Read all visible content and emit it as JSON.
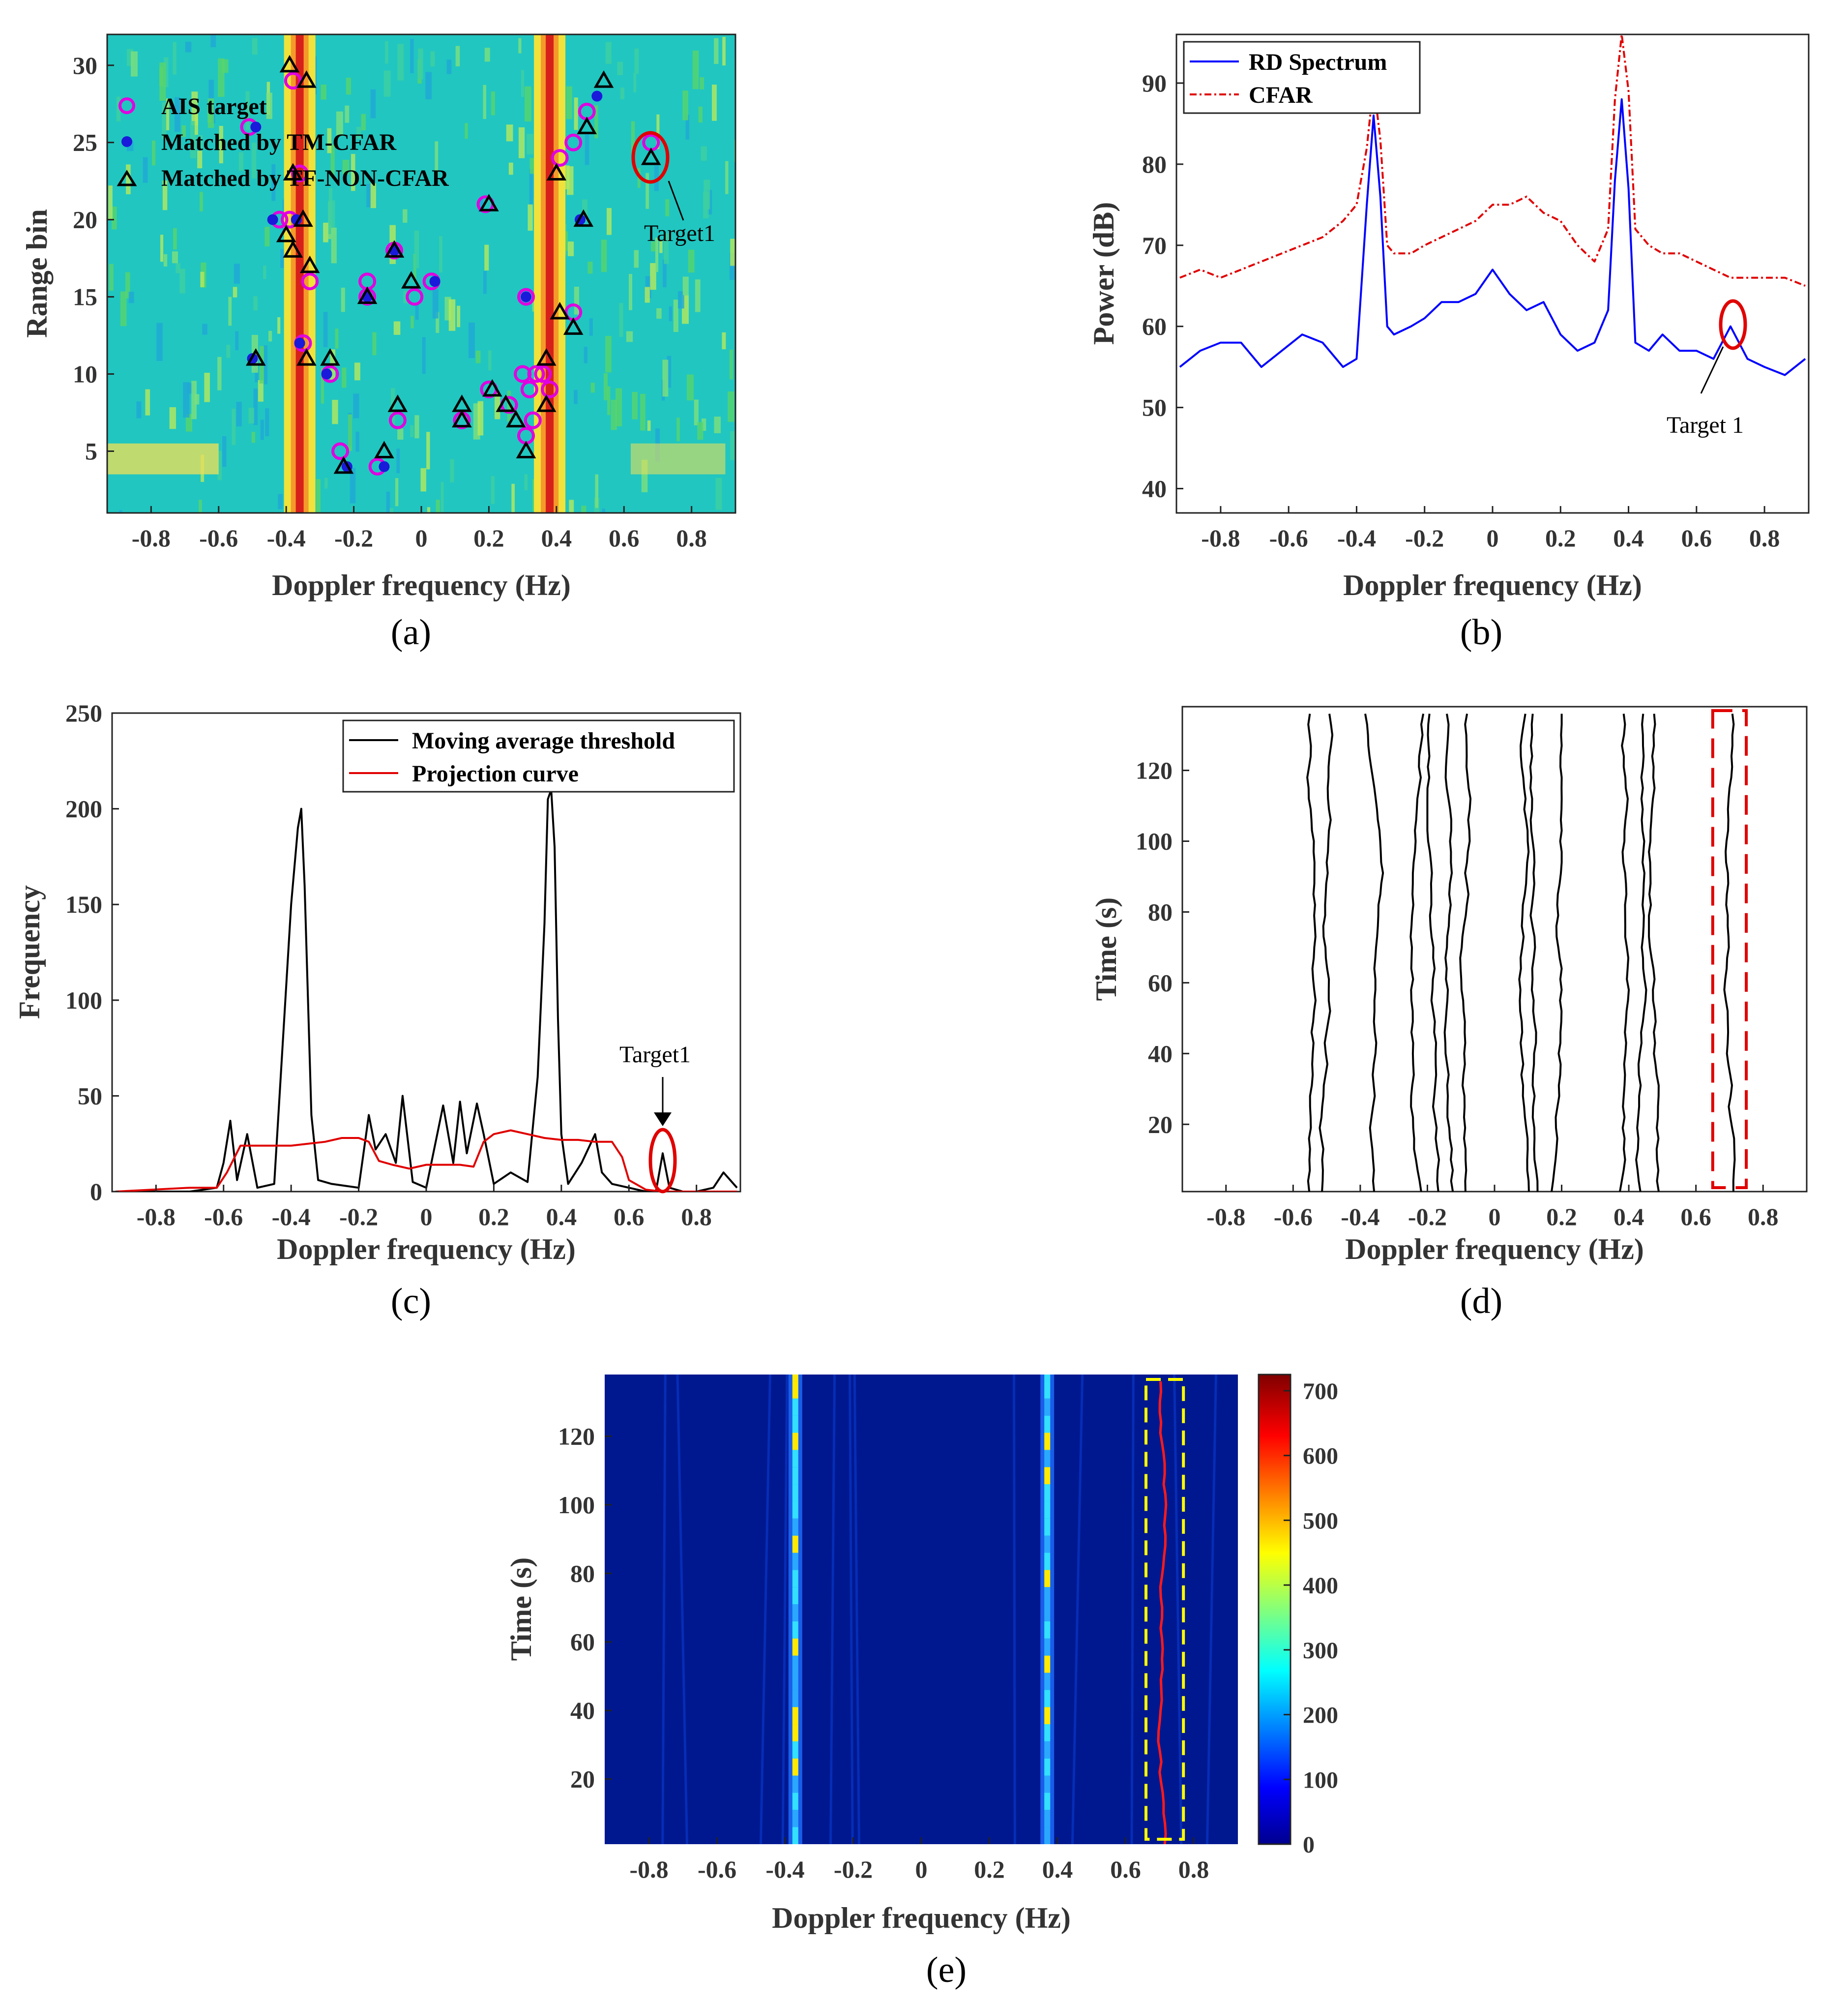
{
  "chart_data": [
    {
      "id": "a",
      "type": "heatmap",
      "panel_label": "(a)",
      "xlabel": "Doppler frequency (Hz)",
      "ylabel": "Range bin",
      "xlim": [
        -0.93,
        0.93
      ],
      "ylim": [
        1,
        32
      ],
      "xticks": [
        -0.8,
        -0.6,
        -0.4,
        -0.2,
        0,
        0.2,
        0.4,
        0.6,
        0.8
      ],
      "yticks": [
        5,
        10,
        15,
        20,
        25,
        30
      ],
      "background": "#21c6c0",
      "sea_clutter_ridges_hz": [
        -0.36,
        0.38
      ],
      "legend": [
        "AIS target",
        "Matched by TM-CFAR",
        "Matched by TF-NON-CFAR"
      ],
      "annotation": {
        "text": "Target1",
        "x": 0.68,
        "y": 24.5
      },
      "series": [
        {
          "name": "AIS target",
          "marker": "circle-magenta",
          "points": [
            [
              -0.51,
              26
            ],
            [
              -0.38,
              29
            ],
            [
              -0.36,
              23
            ],
            [
              -0.42,
              20
            ],
            [
              -0.39,
              20
            ],
            [
              -0.33,
              16
            ],
            [
              -0.16,
              16
            ],
            [
              -0.16,
              15
            ],
            [
              -0.02,
              15
            ],
            [
              0.03,
              16
            ],
            [
              -0.08,
              18
            ],
            [
              0.19,
              21
            ],
            [
              0.31,
              15
            ],
            [
              0.45,
              14
            ],
            [
              -0.35,
              12
            ],
            [
              -0.27,
              10
            ],
            [
              -0.24,
              5
            ],
            [
              -0.13,
              4
            ],
            [
              -0.07,
              7
            ],
            [
              0.12,
              7
            ],
            [
              0.2,
              9
            ],
            [
              0.26,
              8
            ],
            [
              0.3,
              10
            ],
            [
              0.32,
              9
            ],
            [
              0.34,
              10
            ],
            [
              0.36,
              10
            ],
            [
              0.31,
              6
            ],
            [
              0.33,
              7
            ],
            [
              0.38,
              9
            ],
            [
              0.41,
              24
            ],
            [
              0.45,
              25
            ],
            [
              0.49,
              27
            ],
            [
              0.68,
              25
            ]
          ]
        },
        {
          "name": "Matched by TM-CFAR",
          "marker": "dot-blue",
          "points": [
            [
              -0.49,
              26
            ],
            [
              -0.5,
              11
            ],
            [
              -0.44,
              20
            ],
            [
              -0.37,
              20
            ],
            [
              -0.36,
              12
            ],
            [
              -0.28,
              10
            ],
            [
              -0.22,
              4
            ],
            [
              -0.16,
              15
            ],
            [
              -0.11,
              4
            ],
            [
              0.04,
              16
            ],
            [
              -0.08,
              18
            ],
            [
              0.31,
              15
            ],
            [
              0.47,
              20
            ],
            [
              0.52,
              28
            ]
          ]
        },
        {
          "name": "Matched by TF-NON-CFAR",
          "marker": "triangle-black",
          "points": [
            [
              -0.39,
              30
            ],
            [
              -0.34,
              29
            ],
            [
              -0.38,
              23
            ],
            [
              -0.35,
              20
            ],
            [
              -0.4,
              19
            ],
            [
              -0.38,
              18
            ],
            [
              -0.33,
              17
            ],
            [
              -0.16,
              15
            ],
            [
              -0.03,
              16
            ],
            [
              -0.08,
              18
            ],
            [
              0.2,
              21
            ],
            [
              0.4,
              23
            ],
            [
              0.48,
              20
            ],
            [
              0.49,
              26
            ],
            [
              0.54,
              29
            ],
            [
              0.41,
              14
            ],
            [
              0.45,
              13
            ],
            [
              -0.49,
              11
            ],
            [
              -0.34,
              11
            ],
            [
              -0.27,
              11
            ],
            [
              -0.23,
              4
            ],
            [
              -0.11,
              5
            ],
            [
              -0.07,
              8
            ],
            [
              0.12,
              8
            ],
            [
              0.12,
              7
            ],
            [
              0.21,
              9
            ],
            [
              0.25,
              8
            ],
            [
              0.28,
              7
            ],
            [
              0.31,
              5
            ],
            [
              0.37,
              8
            ],
            [
              0.37,
              11
            ],
            [
              0.68,
              24
            ]
          ]
        }
      ]
    },
    {
      "id": "b",
      "type": "line",
      "panel_label": "(b)",
      "xlabel": "Doppler frequency (Hz)",
      "ylabel": "Power (dB)",
      "xlim": [
        -0.93,
        0.93
      ],
      "ylim": [
        37,
        96
      ],
      "xticks": [
        -0.8,
        -0.6,
        -0.4,
        -0.2,
        0,
        0.2,
        0.4,
        0.6,
        0.8
      ],
      "yticks": [
        40,
        50,
        60,
        70,
        80,
        90
      ],
      "legend": [
        "RD Spectrum",
        "CFAR"
      ],
      "annotation": {
        "text": "Target 1",
        "x": 0.7,
        "y": 61
      },
      "series": [
        {
          "name": "RD Spectrum",
          "color": "#0000ff",
          "style": "solid",
          "x": [
            -0.92,
            -0.86,
            -0.8,
            -0.74,
            -0.68,
            -0.62,
            -0.56,
            -0.5,
            -0.44,
            -0.4,
            -0.37,
            -0.35,
            -0.33,
            -0.31,
            -0.29,
            -0.24,
            -0.2,
            -0.15,
            -0.1,
            -0.05,
            0,
            0.05,
            0.1,
            0.15,
            0.2,
            0.25,
            0.3,
            0.34,
            0.36,
            0.38,
            0.4,
            0.42,
            0.46,
            0.5,
            0.55,
            0.6,
            0.65,
            0.7,
            0.75,
            0.8,
            0.86,
            0.92
          ],
          "y": [
            55,
            57,
            58,
            58,
            55,
            57,
            59,
            58,
            55,
            56,
            75,
            86,
            76,
            60,
            59,
            60,
            61,
            63,
            63,
            64,
            67,
            64,
            62,
            63,
            59,
            57,
            58,
            62,
            78,
            88,
            77,
            58,
            57,
            59,
            57,
            57,
            56,
            60,
            56,
            55,
            54,
            56
          ]
        },
        {
          "name": "CFAR",
          "color": "#e00000",
          "style": "dashdot",
          "x": [
            -0.92,
            -0.86,
            -0.8,
            -0.74,
            -0.68,
            -0.62,
            -0.56,
            -0.5,
            -0.44,
            -0.4,
            -0.37,
            -0.35,
            -0.33,
            -0.31,
            -0.29,
            -0.24,
            -0.2,
            -0.15,
            -0.1,
            -0.05,
            0,
            0.05,
            0.1,
            0.15,
            0.2,
            0.25,
            0.3,
            0.34,
            0.36,
            0.38,
            0.4,
            0.42,
            0.46,
            0.5,
            0.55,
            0.6,
            0.65,
            0.7,
            0.75,
            0.8,
            0.86,
            0.92
          ],
          "y": [
            66,
            67,
            66,
            67,
            68,
            69,
            70,
            71,
            73,
            75,
            82,
            90,
            83,
            70,
            69,
            69,
            70,
            71,
            72,
            73,
            75,
            75,
            76,
            74,
            73,
            70,
            68,
            72,
            88,
            96,
            89,
            72,
            70,
            69,
            69,
            68,
            67,
            66,
            66,
            66,
            66,
            65
          ]
        }
      ]
    },
    {
      "id": "c",
      "type": "line",
      "panel_label": "(c)",
      "xlabel": "Doppler frequency (Hz)",
      "ylabel": "Frequency",
      "xlim": [
        -0.93,
        0.93
      ],
      "ylim": [
        0,
        250
      ],
      "xticks": [
        -0.8,
        -0.6,
        -0.4,
        -0.2,
        0,
        0.2,
        0.4,
        0.6,
        0.8
      ],
      "yticks": [
        0,
        50,
        100,
        150,
        200,
        250
      ],
      "legend": [
        "Moving average threshold",
        "Projection curve"
      ],
      "annotation": {
        "text": "Target1",
        "x": 0.7,
        "y": 20
      },
      "series": [
        {
          "name": "Moving average threshold",
          "color": "#000000",
          "style": "solid",
          "x": [
            -0.92,
            -0.7,
            -0.62,
            -0.6,
            -0.58,
            -0.56,
            -0.53,
            -0.5,
            -0.45,
            -0.4,
            -0.38,
            -0.37,
            -0.36,
            -0.35,
            -0.34,
            -0.32,
            -0.28,
            -0.2,
            -0.17,
            -0.15,
            -0.12,
            -0.09,
            -0.07,
            -0.04,
            0,
            0.05,
            0.08,
            0.1,
            0.12,
            0.15,
            0.17,
            0.2,
            0.25,
            0.3,
            0.33,
            0.35,
            0.36,
            0.37,
            0.38,
            0.39,
            0.4,
            0.42,
            0.46,
            0.5,
            0.52,
            0.55,
            0.6,
            0.65,
            0.68,
            0.7,
            0.72,
            0.76,
            0.8,
            0.85,
            0.88,
            0.92
          ],
          "y": [
            0,
            0,
            2,
            15,
            37,
            6,
            30,
            2,
            4,
            150,
            190,
            200,
            160,
            100,
            40,
            6,
            4,
            2,
            40,
            22,
            30,
            15,
            50,
            5,
            2,
            45,
            15,
            47,
            20,
            46,
            30,
            4,
            10,
            5,
            60,
            140,
            205,
            210,
            180,
            90,
            30,
            4,
            15,
            30,
            10,
            4,
            2,
            0,
            0,
            20,
            2,
            0,
            0,
            2,
            10,
            2
          ]
        },
        {
          "name": "Projection curve",
          "color": "#e00000",
          "style": "solid",
          "x": [
            -0.92,
            -0.7,
            -0.62,
            -0.59,
            -0.55,
            -0.5,
            -0.4,
            -0.3,
            -0.25,
            -0.2,
            -0.17,
            -0.14,
            -0.1,
            -0.05,
            0,
            0.05,
            0.1,
            0.14,
            0.17,
            0.2,
            0.25,
            0.3,
            0.35,
            0.4,
            0.45,
            0.5,
            0.55,
            0.58,
            0.6,
            0.65,
            0.7,
            0.92
          ],
          "y": [
            0,
            2,
            2,
            10,
            24,
            24,
            24,
            26,
            28,
            28,
            26,
            16,
            14,
            12,
            14,
            14,
            14,
            13,
            26,
            30,
            32,
            30,
            28,
            27,
            27,
            26,
            26,
            18,
            6,
            1,
            0,
            0
          ]
        }
      ]
    },
    {
      "id": "d",
      "type": "line",
      "panel_label": "(d)",
      "xlabel": "Doppler frequency (Hz)",
      "ylabel": "Time (s)",
      "xlim": [
        -0.93,
        0.93
      ],
      "ylim": [
        1,
        138
      ],
      "xticks": [
        -0.8,
        -0.6,
        -0.4,
        -0.2,
        0,
        0.2,
        0.4,
        0.6,
        0.8
      ],
      "yticks": [
        20,
        40,
        60,
        80,
        100,
        120
      ],
      "tracks_hz": [
        -0.55,
        -0.51,
        -0.36,
        -0.22,
        -0.17,
        -0.12,
        -0.09,
        0.1,
        0.13,
        0.17,
        0.37,
        0.43,
        0.49,
        0.71
      ],
      "highlight_box_hz": [
        0.65,
        0.75
      ]
    },
    {
      "id": "e",
      "type": "heatmap",
      "panel_label": "(e)",
      "xlabel": "Doppler frequency (Hz)",
      "ylabel": "Time (s)",
      "xlim": [
        -0.93,
        0.93
      ],
      "ylim": [
        1,
        138
      ],
      "xticks": [
        -0.8,
        -0.6,
        -0.4,
        -0.2,
        0,
        0.2,
        0.4,
        0.6,
        0.8
      ],
      "yticks": [
        20,
        40,
        60,
        80,
        100,
        120
      ],
      "colorbar": {
        "min": 0,
        "max": 725,
        "ticks": [
          0,
          100,
          200,
          300,
          400,
          500,
          600,
          700
        ]
      },
      "ridges_hz": [
        -0.37,
        0.37
      ],
      "target_track_hz": 0.71,
      "highlight_box_hz": [
        0.66,
        0.77
      ]
    }
  ]
}
